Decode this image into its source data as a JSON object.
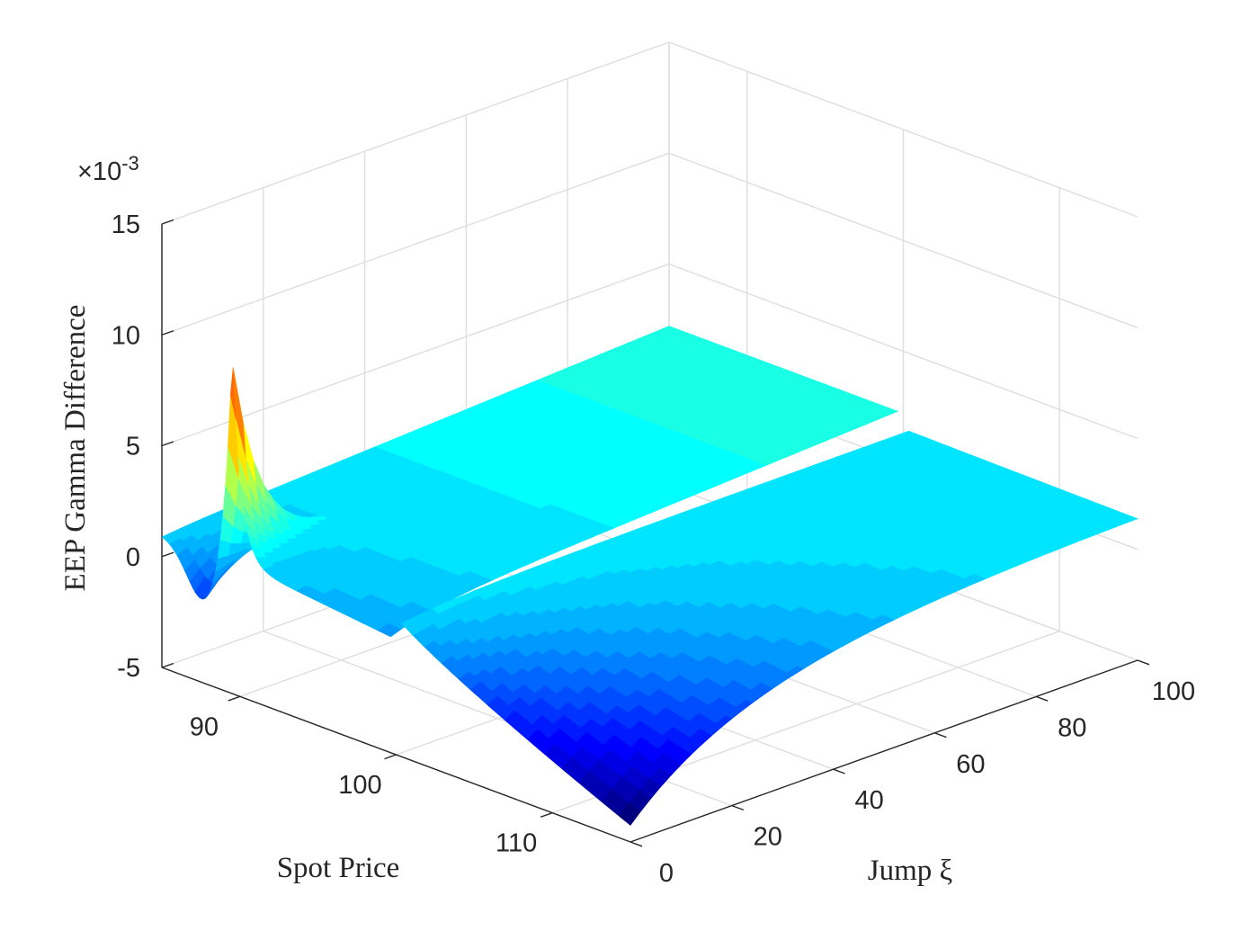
{
  "chart_data": {
    "type": "surface",
    "title": "",
    "xlabel": "Spot Price",
    "ylabel": "Jump ξ",
    "zlabel": "EEP Gamma Difference",
    "z_exponent_label": "×10",
    "z_exponent_power": "-3",
    "xlim": [
      85,
      115
    ],
    "ylim": [
      0,
      100
    ],
    "zlim": [
      -5,
      15
    ],
    "x_ticks": [
      90,
      100,
      110
    ],
    "y_ticks": [
      0,
      20,
      40,
      60,
      80,
      100
    ],
    "z_ticks": [
      -5,
      0,
      5,
      10,
      15
    ],
    "grid": true,
    "colormap": [
      "#00007f",
      "#0000ff",
      "#007fff",
      "#00ffff",
      "#7fff7f",
      "#ffff00",
      "#ff7f00",
      "#ff0000",
      "#7f0000"
    ],
    "color_range": [
      -4,
      11.2
    ],
    "surface": {
      "spot_range": [
        85,
        115
      ],
      "jump_range": [
        0,
        100
      ],
      "gap_at_spot": 100,
      "peak": {
        "spot": 89.5,
        "jump": 0,
        "value": 11.2
      },
      "min_value": -4.0,
      "min_location": {
        "spot": 115,
        "jump": 0
      },
      "plateau_value": 1.5,
      "upper_branch_value": 1.0
    }
  }
}
